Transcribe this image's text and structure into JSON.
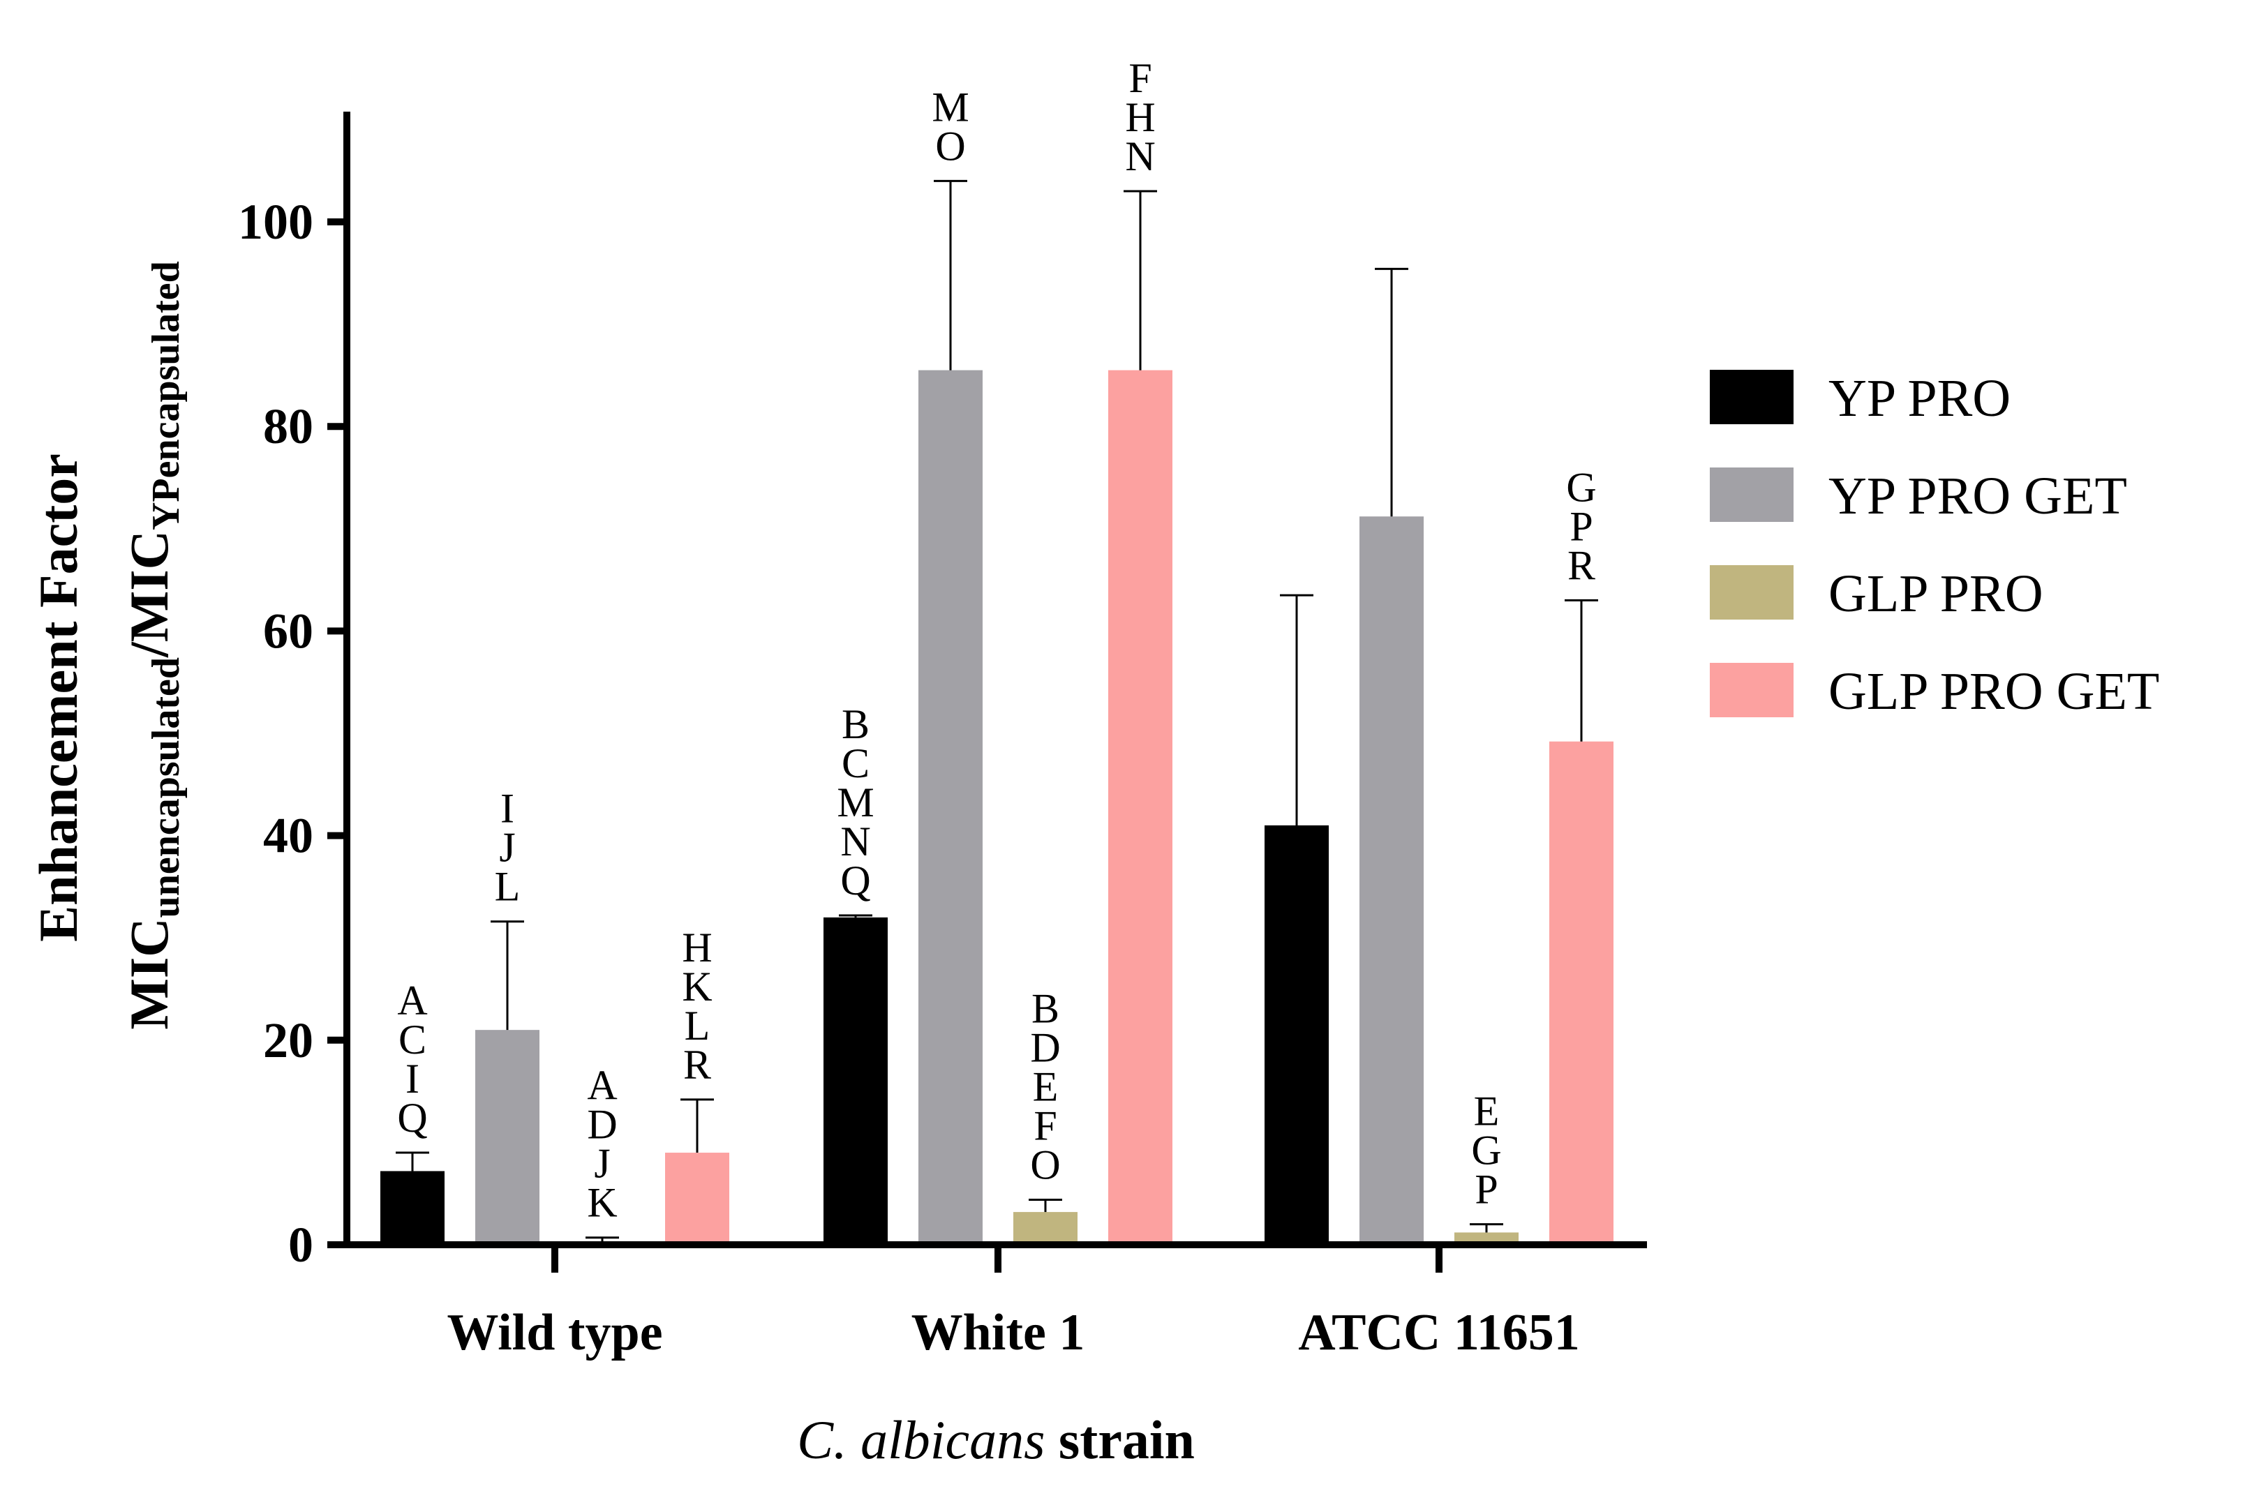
{
  "chart_data": {
    "type": "bar",
    "ylabel_line1": "Enhancement  Factor",
    "ylabel_line2": {
      "main1": "MIC",
      "sub1": "unencapsulated",
      "slash": "/",
      "main2": "MIC",
      "sub2": "YPencapsulated"
    },
    "xlabel": {
      "italic": "C. albicans",
      "plain": " strain"
    },
    "ylim": [
      0,
      110
    ],
    "yticks": [
      0,
      20,
      40,
      60,
      80,
      100
    ],
    "ytick_labels": [
      "0",
      "20",
      "40",
      "60",
      "80",
      "100"
    ],
    "categories": [
      "Wild type",
      "White 1",
      "ATCC 11651"
    ],
    "series": [
      {
        "name": "YP PRO",
        "color": "#000000",
        "values": [
          7.2,
          32,
          41
        ],
        "errors": [
          1.8,
          0.2,
          22.5
        ],
        "letters": [
          [
            "A",
            "C",
            "I",
            "Q"
          ],
          [
            "B",
            "C",
            "M",
            "N",
            "Q"
          ],
          []
        ]
      },
      {
        "name": "YP PRO GET",
        "color": "#a2a1a6",
        "values": [
          21,
          85.5,
          71.2
        ],
        "errors": [
          10.6,
          18.5,
          24.2
        ],
        "letters": [
          [
            "I",
            "J",
            "L"
          ],
          [
            "M",
            "O"
          ],
          []
        ]
      },
      {
        "name": "GLP PRO",
        "color": "#c0b57f",
        "values": [
          0.3,
          3.2,
          1.2
        ],
        "errors": [
          0.4,
          1.2,
          0.8
        ],
        "letters": [
          [
            "A",
            "D",
            "J",
            "K"
          ],
          [
            "B",
            "D",
            "E",
            "F",
            "O"
          ],
          [
            "E",
            "G",
            "P"
          ]
        ]
      },
      {
        "name": "GLP PRO GET",
        "color": "#fca1a0",
        "values": [
          9,
          85.5,
          49.2
        ],
        "errors": [
          5.2,
          17.5,
          13.8
        ],
        "letters": [
          [
            "H",
            "K",
            "L",
            "R"
          ],
          [
            "F",
            "H",
            "N"
          ],
          [
            "G",
            "P",
            "R"
          ]
        ]
      }
    ]
  }
}
